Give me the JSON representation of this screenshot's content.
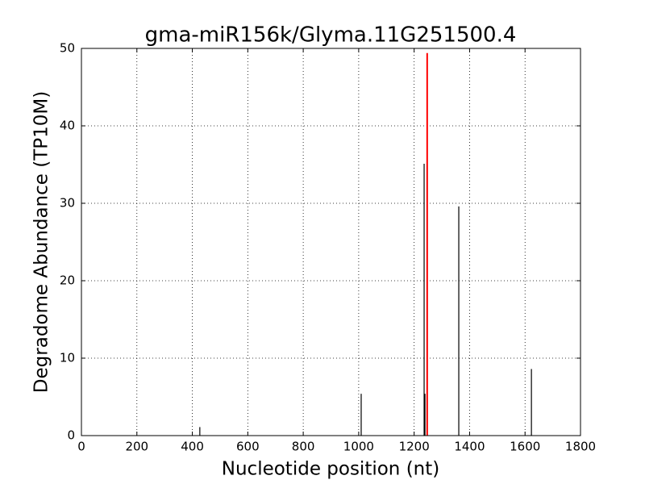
{
  "chart_data": {
    "type": "stem",
    "title": "gma-miR156k/Glyma.11G251500.4",
    "x_label": "Nucleotide position (nt)",
    "y_label": "Degradome Abundance (TP10M)",
    "series": [
      {
        "color": "#000000",
        "x": [
          427,
          1009,
          1236,
          1239,
          1361,
          1623
        ],
        "values": [
          1.1,
          5.4,
          35.1,
          5.4,
          29.6,
          8.6
        ]
      },
      {
        "color": "#ff0000",
        "x": [
          1247
        ],
        "values": [
          49.4
        ]
      }
    ],
    "xlim": [
      0,
      1800
    ],
    "xticks": [
      0,
      200,
      400,
      600,
      800,
      1000,
      1200,
      1400,
      1600,
      1800
    ],
    "ylim": [
      0,
      50
    ],
    "yticks": [
      0,
      10,
      20,
      30,
      40,
      50
    ],
    "grid": true
  }
}
